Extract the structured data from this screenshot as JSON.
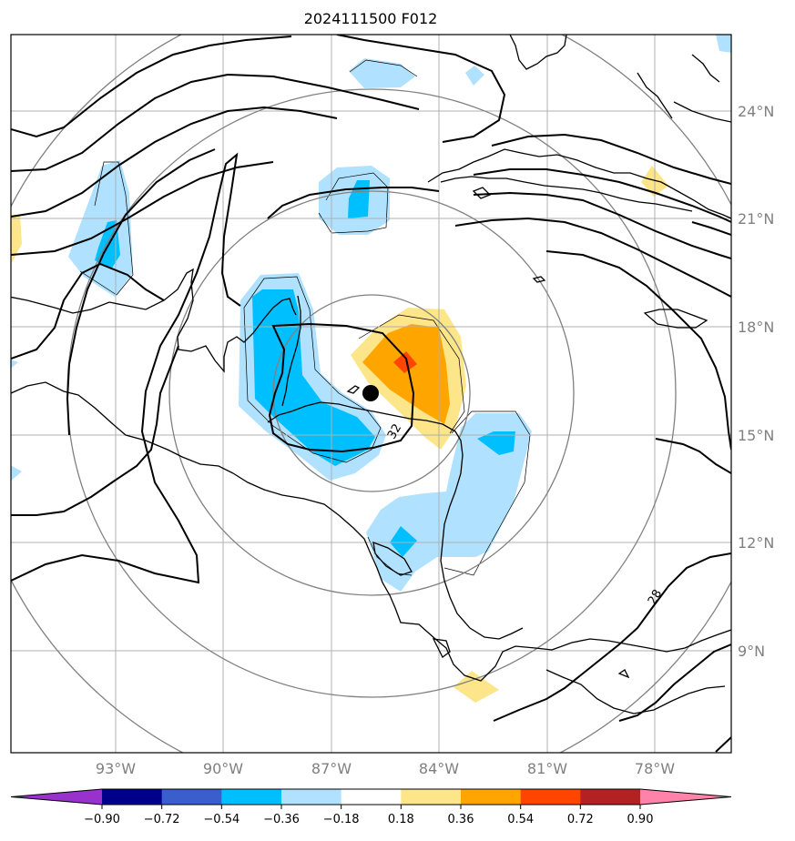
{
  "title": "2024111500 F012",
  "lat_labels": [
    "24°N",
    "21°N",
    "18°N",
    "15°N",
    "12°N",
    "9°N"
  ],
  "lon_labels": [
    "93°W",
    "90°W",
    "87°W",
    "84°W",
    "81°W",
    "78°W"
  ],
  "contour_labels": [
    "32",
    "28"
  ],
  "colorbar": {
    "colors": [
      "#9932cc",
      "#00008b",
      "#3a5fcd",
      "#00bfff",
      "#b0e2ff",
      "#ffffff",
      "#fde58a",
      "#ffa500",
      "#ff4500",
      "#b22222",
      "#ff82ab"
    ],
    "tick_labels": [
      "−0.90",
      "−0.72",
      "−0.54",
      "−0.36",
      "−0.18",
      "0.18",
      "0.36",
      "0.54",
      "0.72",
      "0.90"
    ]
  },
  "fill_colors": {
    "light_blue": "#b0e2ff",
    "blue": "#00bfff",
    "light_yellow": "#fde58a",
    "orange": "#ffa500",
    "red_orange": "#ff4500"
  },
  "storm_center_marker": "filled black dot"
}
